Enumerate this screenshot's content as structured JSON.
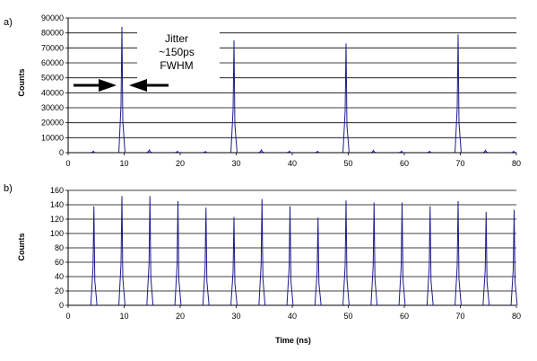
{
  "chart_data": [
    {
      "type": "line",
      "panel_label": "a)",
      "title": "",
      "xlabel": "",
      "ylabel": "Counts",
      "xlim": [
        0,
        80
      ],
      "ylim": [
        0,
        90000
      ],
      "xticks": [
        0,
        10,
        20,
        30,
        40,
        50,
        60,
        70,
        80
      ],
      "yticks": [
        0,
        10000,
        20000,
        30000,
        40000,
        50000,
        60000,
        70000,
        80000,
        90000
      ],
      "grid": "horizontal",
      "line_color": "#1a1a8c",
      "peaks": [
        {
          "x": 4.5,
          "y": 1000
        },
        {
          "x": 9.6,
          "y": 84000
        },
        {
          "x": 14.5,
          "y": 1800
        },
        {
          "x": 19.5,
          "y": 900
        },
        {
          "x": 24.5,
          "y": 800
        },
        {
          "x": 29.6,
          "y": 75000
        },
        {
          "x": 34.5,
          "y": 1800
        },
        {
          "x": 39.5,
          "y": 1000
        },
        {
          "x": 44.5,
          "y": 900
        },
        {
          "x": 49.6,
          "y": 73000
        },
        {
          "x": 54.5,
          "y": 1500
        },
        {
          "x": 59.5,
          "y": 1000
        },
        {
          "x": 64.5,
          "y": 900
        },
        {
          "x": 69.6,
          "y": 79000
        },
        {
          "x": 74.5,
          "y": 1600
        },
        {
          "x": 79.5,
          "y": 900
        }
      ],
      "annotation": {
        "lines": [
          "Jitter",
          "~150ps",
          "FWHM"
        ]
      }
    },
    {
      "type": "line",
      "panel_label": "b)",
      "title": "",
      "xlabel": "Time (ns)",
      "ylabel": "Counts",
      "xlim": [
        0,
        80
      ],
      "ylim": [
        0,
        160
      ],
      "xticks": [
        0,
        10,
        20,
        30,
        40,
        50,
        60,
        70,
        80
      ],
      "yticks": [
        0,
        20,
        40,
        60,
        80,
        100,
        120,
        140,
        160
      ],
      "grid": "horizontal",
      "line_color": "#1a1a8c",
      "peaks": [
        {
          "x": 4.6,
          "y": 138
        },
        {
          "x": 9.6,
          "y": 152
        },
        {
          "x": 14.6,
          "y": 152
        },
        {
          "x": 19.6,
          "y": 145
        },
        {
          "x": 24.6,
          "y": 136
        },
        {
          "x": 29.6,
          "y": 123
        },
        {
          "x": 34.6,
          "y": 148
        },
        {
          "x": 39.6,
          "y": 138
        },
        {
          "x": 44.6,
          "y": 122
        },
        {
          "x": 49.6,
          "y": 146
        },
        {
          "x": 54.6,
          "y": 143
        },
        {
          "x": 59.6,
          "y": 143
        },
        {
          "x": 64.6,
          "y": 138
        },
        {
          "x": 69.6,
          "y": 145
        },
        {
          "x": 74.6,
          "y": 130
        },
        {
          "x": 79.6,
          "y": 133
        }
      ]
    }
  ]
}
